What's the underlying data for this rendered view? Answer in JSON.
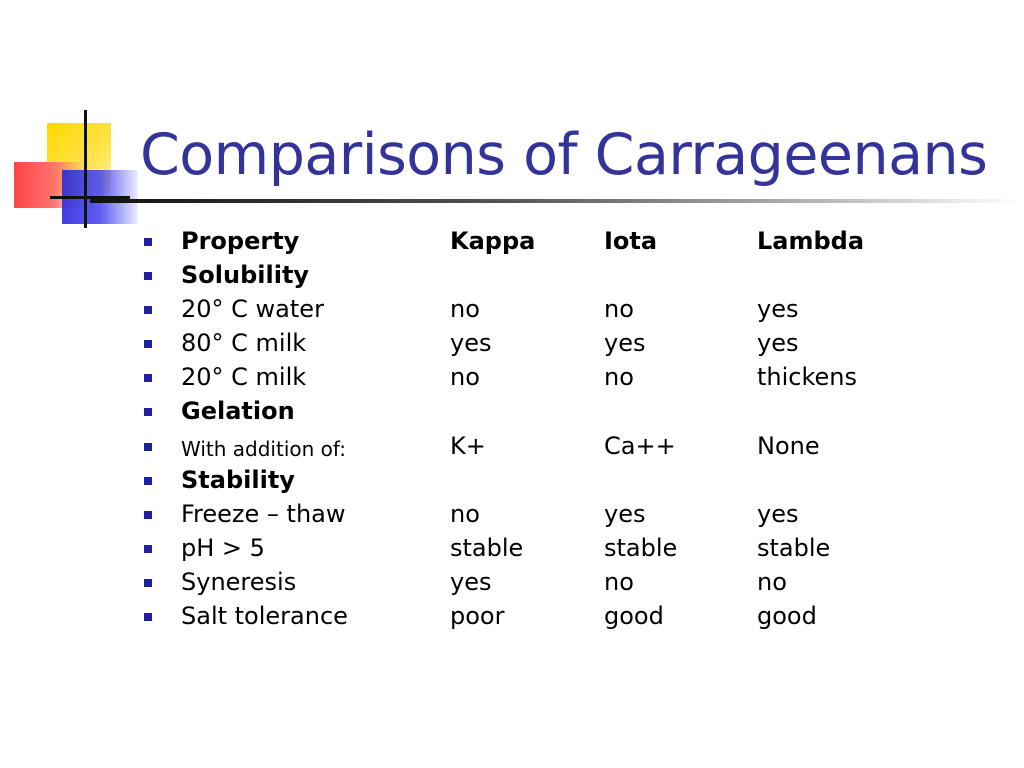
{
  "title": "Comparisons of Carrageenans",
  "colors": {
    "title": "#333399",
    "bullet": "#1f1fa6",
    "deco_yellow": "#ffd800",
    "deco_red": "#ff3b3b",
    "deco_blue": "#2a2ad8"
  },
  "rows": [
    {
      "cells": [
        "Property",
        "Kappa",
        "Iota",
        "Lambda"
      ],
      "bold": true
    },
    {
      "cells": [
        "Solubility",
        "",
        "",
        ""
      ],
      "bold": true
    },
    {
      "cells": [
        "20° C water",
        "no",
        "no",
        "yes"
      ],
      "bold": false
    },
    {
      "cells": [
        "80° C milk",
        "yes",
        "yes",
        "yes"
      ],
      "bold": false
    },
    {
      "cells": [
        "20° C milk",
        "no",
        "no",
        "thickens"
      ],
      "bold": false
    },
    {
      "cells": [
        "Gelation",
        "",
        "",
        ""
      ],
      "bold": true
    },
    {
      "cells": [
        "With addition of:",
        "K+",
        "Ca++",
        "None"
      ],
      "bold": false
    },
    {
      "cells": [
        "Stability",
        "",
        "",
        ""
      ],
      "bold": true
    },
    {
      "cells": [
        "Freeze – thaw",
        "no",
        "yes",
        "yes"
      ],
      "bold": false
    },
    {
      "cells": [
        "pH > 5",
        "stable",
        "stable",
        "stable"
      ],
      "bold": false
    },
    {
      "cells": [
        "Syneresis",
        "yes",
        "no",
        "no"
      ],
      "bold": false
    },
    {
      "cells": [
        "Salt tolerance",
        "poor",
        "good",
        "good"
      ],
      "bold": false
    }
  ]
}
